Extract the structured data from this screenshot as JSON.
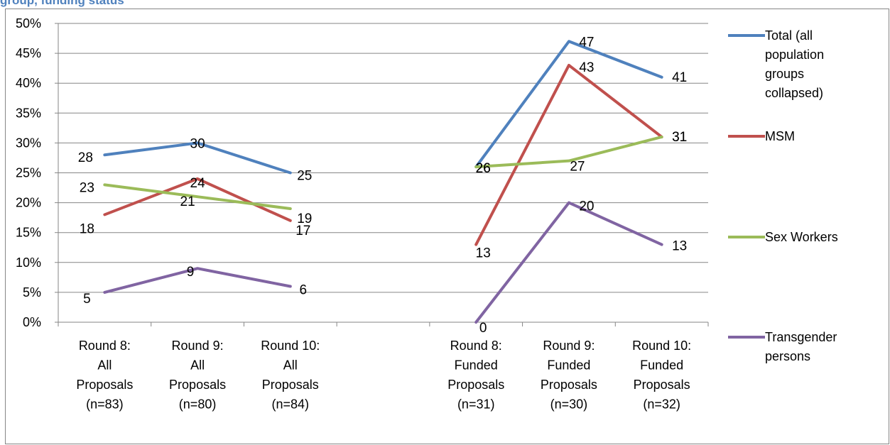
{
  "title": "group, funding status",
  "chart_data": {
    "type": "line",
    "title": "group, funding status",
    "ylim": [
      0,
      50
    ],
    "ytick_labels": [
      "0%",
      "5%",
      "10%",
      "15%",
      "20%",
      "25%",
      "30%",
      "35%",
      "40%",
      "45%",
      "50%"
    ],
    "grid": true,
    "legend_position": "right",
    "categories": [
      {
        "lines": [
          "Round 8:",
          "All",
          "Proposals",
          "(n=83)"
        ]
      },
      {
        "lines": [
          "Round 9:",
          "All",
          "Proposals",
          "(n=80)"
        ]
      },
      {
        "lines": [
          "Round 10:",
          "All",
          "Proposals",
          "(n=84)"
        ]
      },
      {
        "lines": []
      },
      {
        "lines": [
          "Round 8:",
          "Funded",
          "Proposals",
          "(n=31)"
        ]
      },
      {
        "lines": [
          "Round 9:",
          "Funded",
          "Proposals",
          "(n=30)"
        ]
      },
      {
        "lines": [
          "Round 10:",
          "Funded",
          "Proposals",
          "(n=32)"
        ]
      }
    ],
    "series": [
      {
        "name": "Total (all population groups collapsed)",
        "legend_lines": [
          "Total (all",
          "population",
          "groups",
          "collapsed)"
        ],
        "color": "#4f81bd",
        "values": [
          28,
          30,
          25,
          null,
          26,
          47,
          41
        ]
      },
      {
        "name": "MSM",
        "legend_lines": [
          "MSM"
        ],
        "color": "#c0504d",
        "values": [
          18,
          24,
          17,
          null,
          13,
          43,
          31
        ]
      },
      {
        "name": "Sex Workers",
        "legend_lines": [
          "Sex Workers"
        ],
        "color": "#9bbb59",
        "values": [
          23,
          21,
          19,
          null,
          26,
          27,
          31
        ]
      },
      {
        "name": "Transgender persons",
        "legend_lines": [
          "Transgender",
          "persons"
        ],
        "color": "#8064a2",
        "values": [
          5,
          9,
          6,
          null,
          0,
          20,
          13
        ]
      }
    ]
  }
}
